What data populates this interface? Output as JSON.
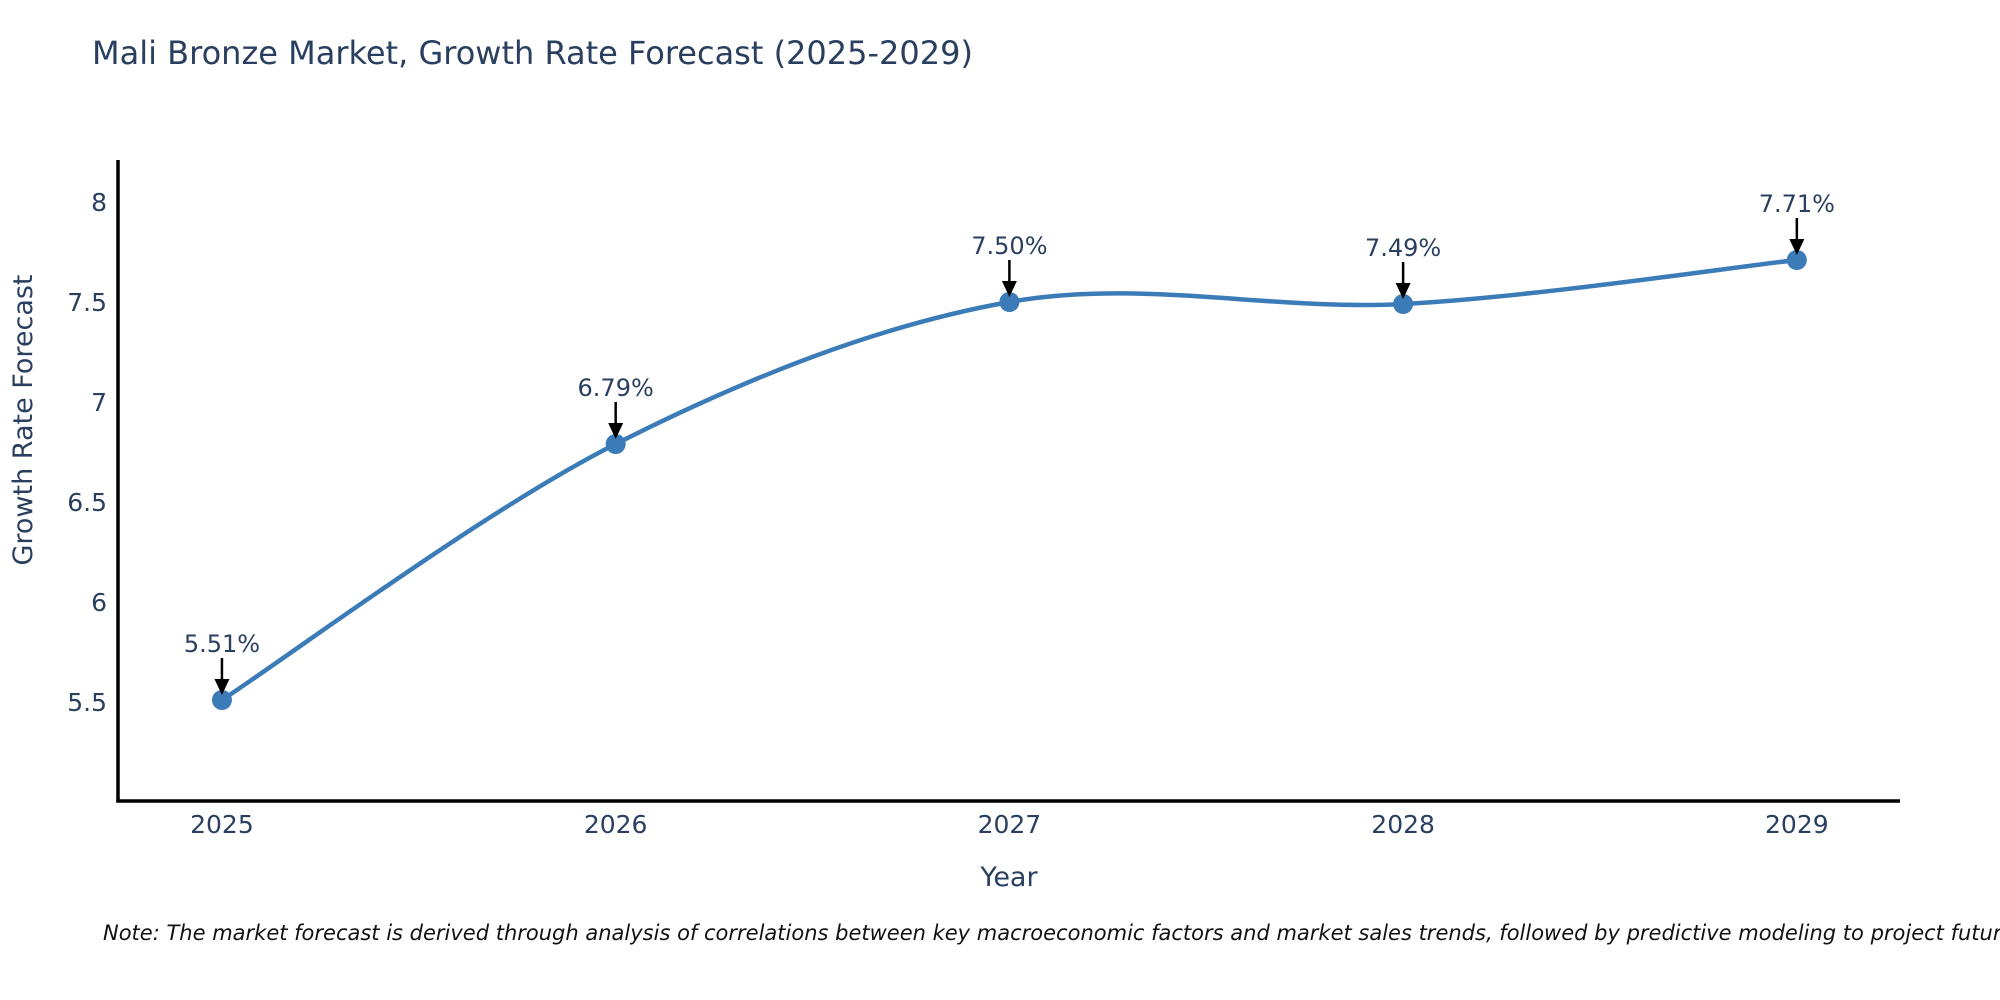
{
  "chart_data": {
    "type": "line",
    "title": "Mali Bronze Market, Growth Rate Forecast (2025-2029)",
    "xlabel": "Year",
    "ylabel": "Growth Rate Forecast",
    "x": [
      2025,
      2026,
      2027,
      2028,
      2029
    ],
    "y": [
      5.51,
      6.79,
      7.5,
      7.49,
      7.71
    ],
    "point_labels": [
      "5.51%",
      "6.79%",
      "7.50%",
      "7.49%",
      "7.71%"
    ],
    "xtick_labels": [
      "2025",
      "2026",
      "2027",
      "2028",
      "2029"
    ],
    "ytick_values": [
      5.5,
      6,
      6.5,
      7,
      7.5,
      8
    ],
    "ytick_labels": [
      "5.5",
      "6",
      "6.5",
      "7",
      "7.5",
      "8"
    ],
    "xlim": [
      2024.736,
      2029.262
    ],
    "ylim": [
      5.0,
      8.21
    ],
    "grid": false,
    "legend_position": "none",
    "line_shape": "spline",
    "marker_radius": 10,
    "colors": {
      "line": "#3b7cb8",
      "marker": "#3b7cb8",
      "axis": "#000000",
      "text": "#2a3f5f",
      "annotation_text": "#2a3f5f",
      "annotation_arrow": "#000000",
      "note_text": "#111111"
    }
  },
  "note": {
    "text": "Note: The market forecast is derived through analysis of correlations between key macroeconomic factors and market sales trends, followed by predictive modeling to project future sales"
  }
}
